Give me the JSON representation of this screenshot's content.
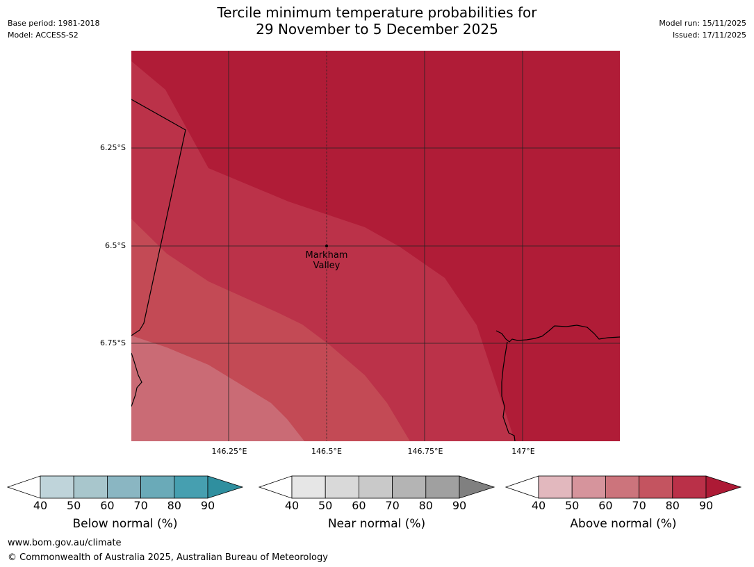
{
  "header": {
    "title_line1": "Tercile minimum temperature probabilities for",
    "title_line2": "29 November to 5 December 2025",
    "base_period": "Base period: 1981-2018",
    "model": "Model: ACCESS-S2",
    "model_run": "Model run: 15/11/2025",
    "issued": "Issued: 17/11/2025"
  },
  "map": {
    "lat_labels": [
      "6.25°S",
      "6.5°S",
      "6.75°S"
    ],
    "lon_labels": [
      "146.25°E",
      "146.5°E",
      "146.75°E",
      "147°E"
    ],
    "place": {
      "line1": "Markham",
      "line2": "Valley"
    },
    "colors": {
      "band_90": "#b01c37",
      "band_80": "#bb3249",
      "band_70": "#c34a55",
      "band_60": "#ca6b75"
    }
  },
  "legends": [
    {
      "title": "Below normal (%)",
      "ticks": [
        "40",
        "50",
        "60",
        "70",
        "80",
        "90"
      ],
      "colors": [
        "#ffffff",
        "#bfd4da",
        "#a8c6cc",
        "#8ab6c2",
        "#6aaab8",
        "#469fb0",
        "#2f8f9f"
      ]
    },
    {
      "title": "Near normal (%)",
      "ticks": [
        "40",
        "50",
        "60",
        "70",
        "80",
        "90"
      ],
      "colors": [
        "#ffffff",
        "#e6e6e6",
        "#d9d9d9",
        "#c9c9c9",
        "#b4b4b4",
        "#a0a0a0",
        "#808080"
      ]
    },
    {
      "title": "Above normal (%)",
      "ticks": [
        "40",
        "50",
        "60",
        "70",
        "80",
        "90"
      ],
      "colors": [
        "#ffffff",
        "#e2b8be",
        "#d6949c",
        "#cc747c",
        "#c45460",
        "#ba3048",
        "#ad1a35"
      ]
    }
  ],
  "footer": {
    "url": "www.bom.gov.au/climate",
    "copyright": "© Commonwealth of Australia 2025, Australian Bureau of Meteorology"
  }
}
